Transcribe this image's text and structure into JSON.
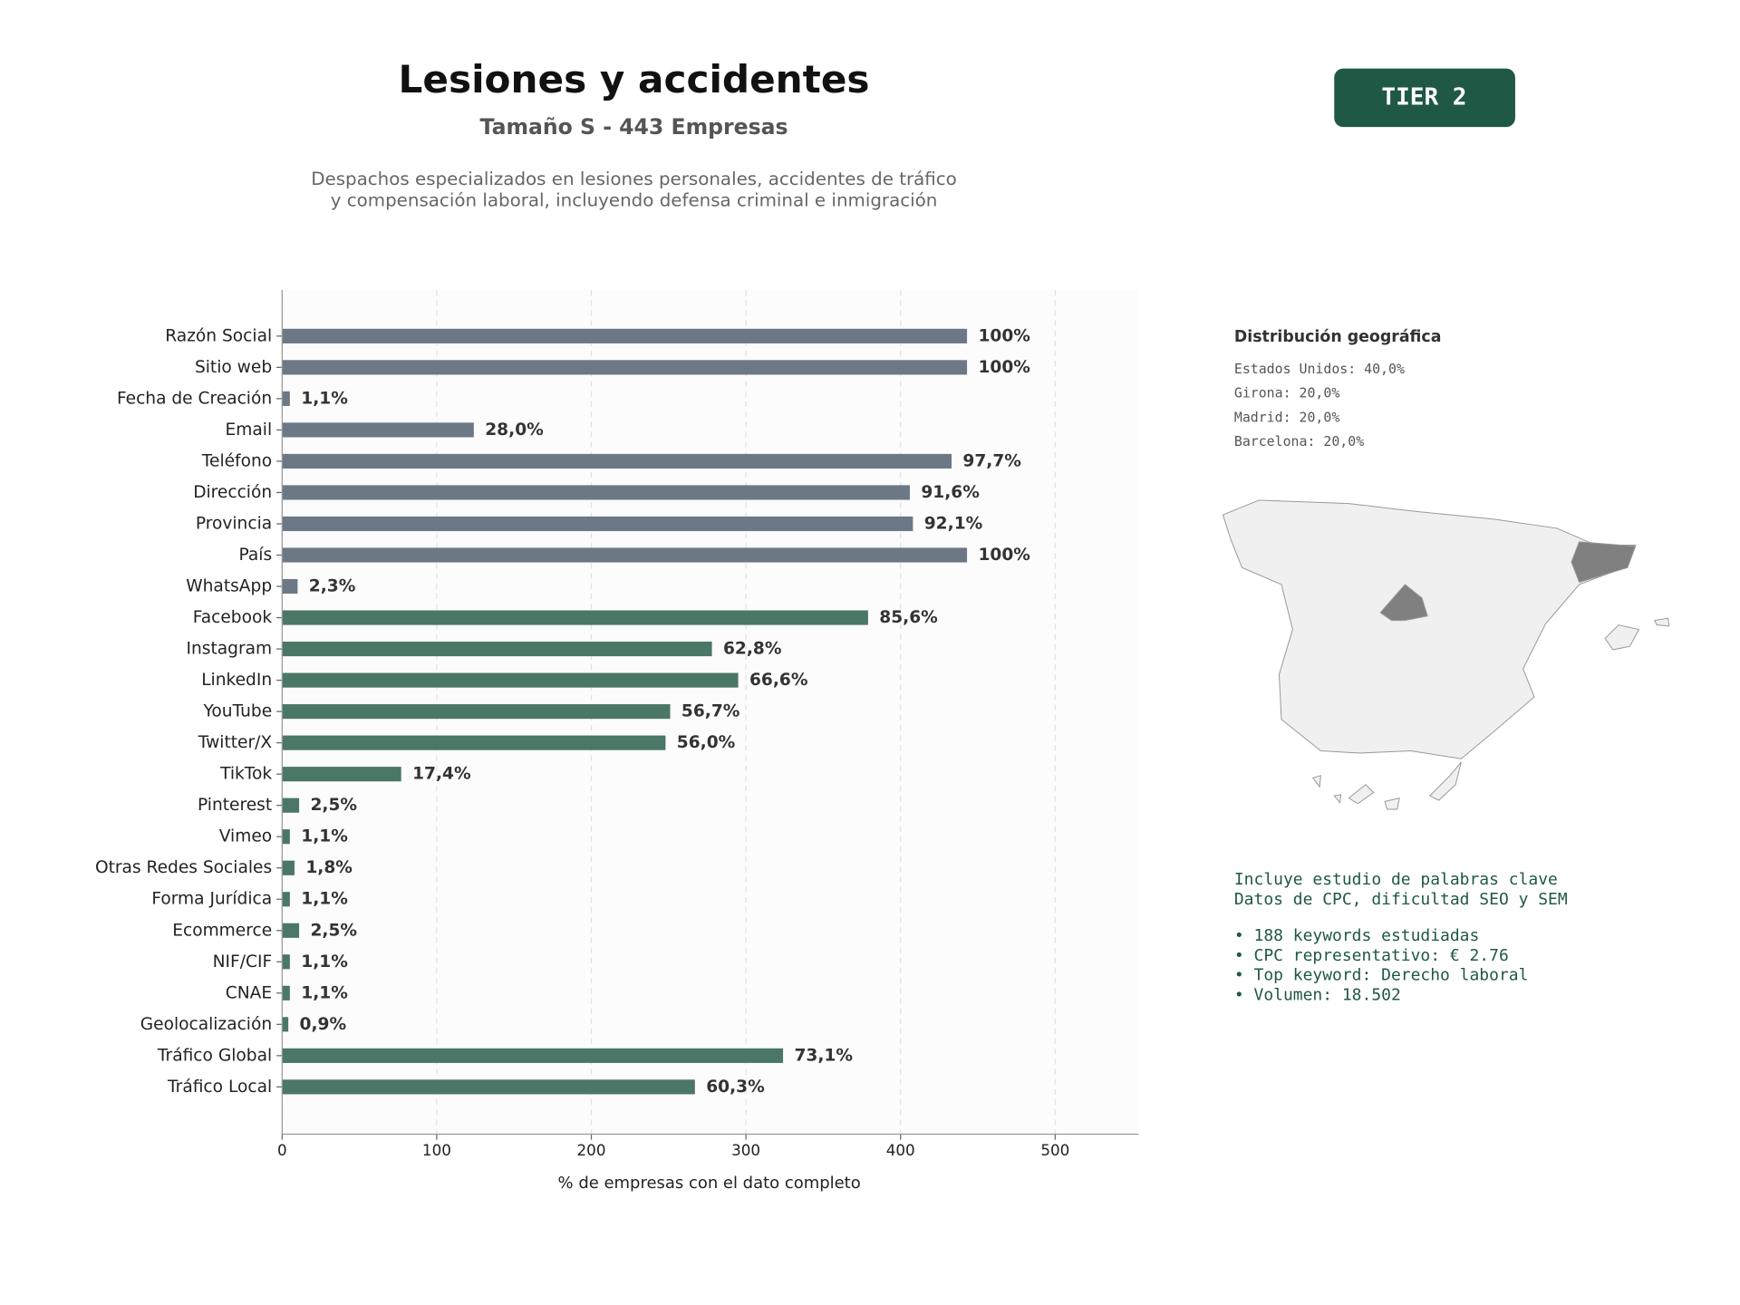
{
  "chart_data": {
    "type": "bar",
    "orientation": "horizontal",
    "title": "Lesiones y accidentes",
    "subtitle": "Tamaño S - 443 Empresas",
    "description": [
      "Despachos especializados en lesiones personales, accidentes de tráfico",
      "y compensación laboral, incluyendo defensa criminal e inmigración"
    ],
    "xlabel": "% de empresas con el dato completo",
    "categories": [
      "Razón Social",
      "Sitio web",
      "Fecha de Creación",
      "Email",
      "Teléfono",
      "Dirección",
      "Provincia",
      "País",
      "WhatsApp",
      "Facebook",
      "Instagram",
      "LinkedIn",
      "YouTube",
      "Twitter/X",
      "TikTok",
      "Pinterest",
      "Vimeo",
      "Otras Redes Sociales",
      "Forma Jurídica",
      "Ecommerce",
      "NIF/CIF",
      "CNAE",
      "Geolocalización",
      "Tráfico Global",
      "Tráfico Local"
    ],
    "values": [
      443,
      443,
      5,
      124,
      433,
      406,
      408,
      443,
      10,
      379,
      278,
      295,
      251,
      248,
      77,
      11,
      5,
      8,
      5,
      11,
      5,
      5,
      4,
      324,
      267
    ],
    "value_labels": [
      "100%",
      "100%",
      "1,1%",
      "28,0%",
      "97,7%",
      "91,6%",
      "92,1%",
      "100%",
      "2,3%",
      "85,6%",
      "62,8%",
      "66,6%",
      "56,7%",
      "56,0%",
      "17,4%",
      "2,5%",
      "1,1%",
      "1,8%",
      "1,1%",
      "2,5%",
      "1,1%",
      "1,1%",
      "0,9%",
      "73,1%",
      "60,3%"
    ],
    "colors": [
      "#6c7885",
      "#6c7885",
      "#6c7885",
      "#6c7885",
      "#6c7885",
      "#6c7885",
      "#6c7885",
      "#6c7885",
      "#6c7885",
      "#4a7766",
      "#4a7766",
      "#4a7766",
      "#4a7766",
      "#4a7766",
      "#4a7766",
      "#4a7766",
      "#4a7766",
      "#4a7766",
      "#4a7766",
      "#4a7766",
      "#4a7766",
      "#4a7766",
      "#4a7766",
      "#4a7766",
      "#4a7766"
    ],
    "xlim": [
      0,
      554
    ],
    "xticks": [
      0,
      100,
      200,
      300,
      400,
      500
    ],
    "grid": true
  },
  "badge": "TIER 2",
  "geo": {
    "title": "Distribución geográfica",
    "items": [
      "Estados Unidos: 40,0%",
      "Girona: 20,0%",
      "Madrid: 20,0%",
      "Barcelona: 20,0%"
    ]
  },
  "keywords": {
    "lines": [
      "Incluye estudio de palabras clave",
      "Datos de CPC, dificultad SEO y SEM"
    ],
    "bullets": [
      "• 188 keywords estudiadas",
      "• CPC representativo: € 2.76",
      "• Top keyword: Derecho laboral",
      "• Volumen: 18.502"
    ]
  }
}
